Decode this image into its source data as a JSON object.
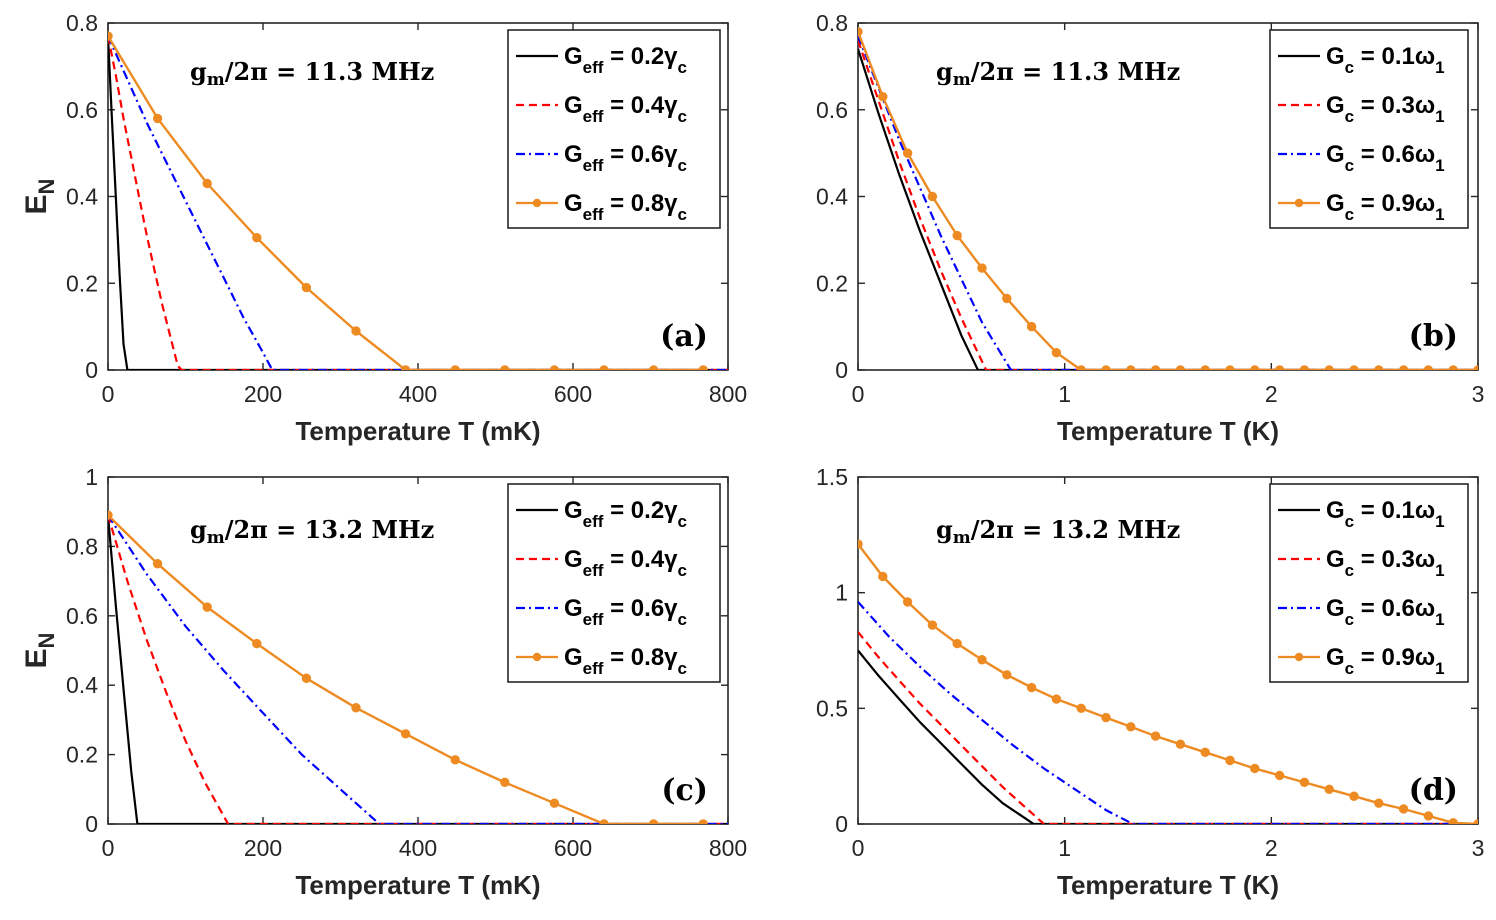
{
  "colors": {
    "black": "#000000",
    "red": "#ff0000",
    "blue": "#0000ff",
    "orange": "#ed8b22"
  },
  "chart_data": [
    {
      "id": "a",
      "type": "line",
      "panel_label": "(a)",
      "annotation": "gm/2π = 11.3 MHz",
      "xlabel": "Temperature T (mK)",
      "ylabel": "E_N",
      "xlim": [
        0,
        800
      ],
      "ylim": [
        0,
        0.8
      ],
      "xticks": [
        0,
        200,
        400,
        600,
        800
      ],
      "yticks": [
        0,
        0.2,
        0.4,
        0.6,
        0.8
      ],
      "legend_position": "top-right",
      "series": [
        {
          "name": "Geff = 0.2γc",
          "label_main": "G",
          "label_sub": "eff",
          "label_rest": " = 0.2γ",
          "label_sub2": "c",
          "color": "#000000",
          "style": "solid",
          "x": [
            0,
            5,
            10,
            15,
            20,
            25,
            800
          ],
          "y": [
            0.77,
            0.58,
            0.4,
            0.22,
            0.06,
            0,
            0
          ]
        },
        {
          "name": "Geff = 0.4γc",
          "label_main": "G",
          "label_sub": "eff",
          "label_rest": " = 0.4γ",
          "label_sub2": "c",
          "color": "#ff0000",
          "style": "dashed",
          "x": [
            0,
            10,
            20,
            30,
            40,
            50,
            60,
            70,
            80,
            90,
            95,
            800
          ],
          "y": [
            0.77,
            0.68,
            0.58,
            0.49,
            0.4,
            0.31,
            0.23,
            0.15,
            0.08,
            0.01,
            0,
            0
          ]
        },
        {
          "name": "Geff = 0.6γc",
          "label_main": "G",
          "label_sub": "eff",
          "label_rest": " = 0.6γ",
          "label_sub2": "c",
          "color": "#0000ff",
          "style": "dashdot",
          "x": [
            0,
            25,
            50,
            75,
            100,
            125,
            150,
            175,
            200,
            212,
            800
          ],
          "y": [
            0.77,
            0.67,
            0.57,
            0.48,
            0.39,
            0.3,
            0.21,
            0.12,
            0.04,
            0,
            0
          ]
        },
        {
          "name": "Geff = 0.8γc",
          "label_main": "G",
          "label_sub": "eff",
          "label_rest": " = 0.8γ",
          "label_sub2": "c",
          "color": "#ed8b22",
          "style": "solid-marker",
          "x": [
            0,
            64,
            128,
            192,
            256,
            320,
            384,
            448,
            512,
            576,
            640,
            704,
            768
          ],
          "y": [
            0.77,
            0.58,
            0.43,
            0.305,
            0.19,
            0.09,
            0,
            0,
            0,
            0,
            0,
            0,
            0
          ]
        }
      ]
    },
    {
      "id": "b",
      "type": "line",
      "panel_label": "(b)",
      "annotation": "gm/2π = 11.3 MHz",
      "xlabel": "Temperature T (K)",
      "ylabel": "",
      "xlim": [
        0,
        3
      ],
      "ylim": [
        0,
        0.8
      ],
      "xticks": [
        0,
        1,
        2,
        3
      ],
      "yticks": [
        0,
        0.2,
        0.4,
        0.6,
        0.8
      ],
      "legend_position": "top-right",
      "series": [
        {
          "name": "Gc = 0.1ω1",
          "label_main": "G",
          "label_sub": "c",
          "label_rest": " = 0.1ω",
          "label_sub2": "1",
          "color": "#000000",
          "style": "solid",
          "x": [
            0,
            0.1,
            0.2,
            0.3,
            0.4,
            0.5,
            0.58,
            3
          ],
          "y": [
            0.74,
            0.59,
            0.45,
            0.32,
            0.2,
            0.08,
            0,
            0
          ]
        },
        {
          "name": "Gc = 0.3ω1",
          "label_main": "G",
          "label_sub": "c",
          "label_rest": " = 0.3ω",
          "label_sub2": "1",
          "color": "#ff0000",
          "style": "dashed",
          "x": [
            0,
            0.1,
            0.2,
            0.3,
            0.4,
            0.5,
            0.62,
            3
          ],
          "y": [
            0.76,
            0.62,
            0.48,
            0.35,
            0.23,
            0.12,
            0,
            0
          ]
        },
        {
          "name": "Gc = 0.6ω1",
          "label_main": "G",
          "label_sub": "c",
          "label_rest": " = 0.6ω",
          "label_sub2": "1",
          "color": "#0000ff",
          "style": "dashdot",
          "x": [
            0,
            0.1,
            0.2,
            0.3,
            0.4,
            0.5,
            0.6,
            0.74,
            3
          ],
          "y": [
            0.77,
            0.65,
            0.53,
            0.42,
            0.31,
            0.21,
            0.11,
            0,
            0
          ]
        },
        {
          "name": "Gc = 0.9ω1",
          "label_main": "G",
          "label_sub": "c",
          "label_rest": " = 0.9ω",
          "label_sub2": "1",
          "color": "#ed8b22",
          "style": "solid-marker",
          "x": [
            0,
            0.12,
            0.24,
            0.36,
            0.48,
            0.6,
            0.72,
            0.84,
            0.96,
            1.08,
            1.2,
            1.32,
            1.44,
            1.56,
            1.68,
            1.8,
            1.92,
            2.04,
            2.16,
            2.28,
            2.4,
            2.52,
            2.64,
            2.76,
            2.88,
            3.0
          ],
          "y": [
            0.78,
            0.63,
            0.5,
            0.4,
            0.31,
            0.235,
            0.165,
            0.1,
            0.04,
            0,
            0,
            0,
            0,
            0,
            0,
            0,
            0,
            0,
            0,
            0,
            0,
            0,
            0,
            0,
            0,
            0
          ]
        }
      ]
    },
    {
      "id": "c",
      "type": "line",
      "panel_label": "(c)",
      "annotation": "gm/2π = 13.2 MHz",
      "xlabel": "Temperature T (mK)",
      "ylabel": "E_N",
      "xlim": [
        0,
        800
      ],
      "ylim": [
        0,
        1
      ],
      "xticks": [
        0,
        200,
        400,
        600,
        800
      ],
      "yticks": [
        0,
        0.2,
        0.4,
        0.6,
        0.8,
        1
      ],
      "legend_position": "top-right",
      "series": [
        {
          "name": "Geff = 0.2γc",
          "label_main": "G",
          "label_sub": "eff",
          "label_rest": " = 0.2γ",
          "label_sub2": "c",
          "color": "#000000",
          "style": "solid",
          "x": [
            0,
            10,
            20,
            30,
            38,
            800
          ],
          "y": [
            0.89,
            0.63,
            0.39,
            0.15,
            0,
            0
          ]
        },
        {
          "name": "Geff = 0.4γc",
          "label_main": "G",
          "label_sub": "eff",
          "label_rest": " = 0.4γ",
          "label_sub2": "c",
          "color": "#ff0000",
          "style": "dashed",
          "x": [
            0,
            25,
            50,
            75,
            100,
            125,
            155,
            800
          ],
          "y": [
            0.89,
            0.7,
            0.53,
            0.38,
            0.24,
            0.12,
            0,
            0
          ]
        },
        {
          "name": "Geff = 0.6γc",
          "label_main": "G",
          "label_sub": "eff",
          "label_rest": " = 0.6γ",
          "label_sub2": "c",
          "color": "#0000ff",
          "style": "dashdot",
          "x": [
            0,
            50,
            100,
            150,
            200,
            250,
            300,
            350,
            800
          ],
          "y": [
            0.89,
            0.72,
            0.57,
            0.44,
            0.32,
            0.2,
            0.1,
            0,
            0
          ]
        },
        {
          "name": "Geff = 0.8γc",
          "label_main": "G",
          "label_sub": "eff",
          "label_rest": " = 0.8γ",
          "label_sub2": "c",
          "color": "#ed8b22",
          "style": "solid-marker",
          "x": [
            0,
            64,
            128,
            192,
            256,
            320,
            384,
            448,
            512,
            576,
            640,
            704,
            768
          ],
          "y": [
            0.89,
            0.75,
            0.625,
            0.52,
            0.42,
            0.335,
            0.26,
            0.185,
            0.12,
            0.06,
            0,
            0,
            0
          ]
        }
      ]
    },
    {
      "id": "d",
      "type": "line",
      "panel_label": "(d)",
      "annotation": "gm/2π = 13.2 MHz",
      "xlabel": "Temperature T (K)",
      "ylabel": "",
      "xlim": [
        0,
        3
      ],
      "ylim": [
        0,
        1.5
      ],
      "xticks": [
        0,
        1,
        2,
        3
      ],
      "yticks": [
        0,
        0.5,
        1,
        1.5
      ],
      "legend_position": "top-right",
      "series": [
        {
          "name": "Gc = 0.1ω1",
          "label_main": "G",
          "label_sub": "c",
          "label_rest": " = 0.1ω",
          "label_sub2": "1",
          "color": "#000000",
          "style": "solid",
          "x": [
            0,
            0.1,
            0.2,
            0.3,
            0.4,
            0.5,
            0.6,
            0.7,
            0.85,
            3
          ],
          "y": [
            0.75,
            0.64,
            0.54,
            0.44,
            0.35,
            0.26,
            0.17,
            0.09,
            0,
            0
          ]
        },
        {
          "name": "Gc = 0.3ω1",
          "label_main": "G",
          "label_sub": "c",
          "label_rest": " = 0.3ω",
          "label_sub2": "1",
          "color": "#ff0000",
          "style": "dashed",
          "x": [
            0,
            0.1,
            0.2,
            0.3,
            0.4,
            0.5,
            0.6,
            0.7,
            0.8,
            0.9,
            3
          ],
          "y": [
            0.83,
            0.72,
            0.62,
            0.52,
            0.43,
            0.34,
            0.25,
            0.16,
            0.08,
            0,
            0
          ]
        },
        {
          "name": "Gc = 0.6ω1",
          "label_main": "G",
          "label_sub": "c",
          "label_rest": " = 0.6ω",
          "label_sub2": "1",
          "color": "#0000ff",
          "style": "dashdot",
          "x": [
            0,
            0.15,
            0.3,
            0.45,
            0.6,
            0.75,
            0.9,
            1.05,
            1.2,
            1.33,
            3
          ],
          "y": [
            0.96,
            0.81,
            0.68,
            0.56,
            0.45,
            0.34,
            0.24,
            0.15,
            0.06,
            0,
            0
          ]
        },
        {
          "name": "Gc = 0.9ω1",
          "label_main": "G",
          "label_sub": "c",
          "label_rest": " = 0.9ω",
          "label_sub2": "1",
          "color": "#ed8b22",
          "style": "solid-marker",
          "x": [
            0,
            0.12,
            0.24,
            0.36,
            0.48,
            0.6,
            0.72,
            0.84,
            0.96,
            1.08,
            1.2,
            1.32,
            1.44,
            1.56,
            1.68,
            1.8,
            1.92,
            2.04,
            2.16,
            2.28,
            2.4,
            2.52,
            2.64,
            2.76,
            2.88,
            3.0
          ],
          "y": [
            1.21,
            1.07,
            0.96,
            0.86,
            0.78,
            0.71,
            0.645,
            0.59,
            0.54,
            0.5,
            0.46,
            0.42,
            0.38,
            0.345,
            0.31,
            0.275,
            0.24,
            0.21,
            0.18,
            0.15,
            0.12,
            0.09,
            0.065,
            0.035,
            0.005,
            0
          ]
        }
      ]
    }
  ]
}
